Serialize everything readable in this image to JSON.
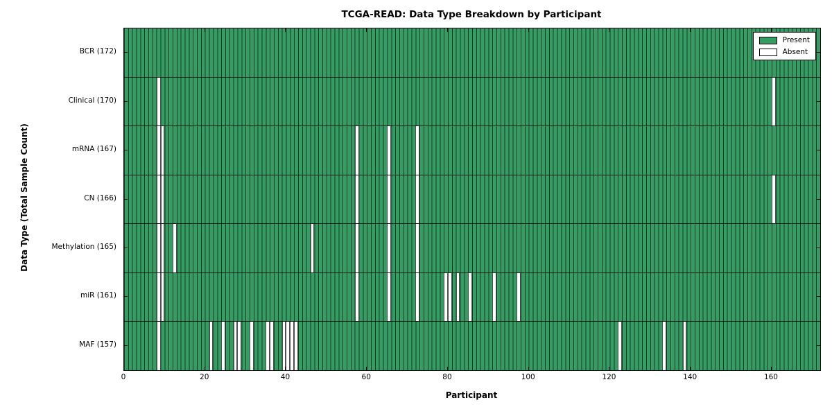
{
  "chart_data": {
    "type": "heatmap",
    "title": "TCGA-READ: Data Type Breakdown by Participant",
    "xlabel": "Participant",
    "ylabel": "Data Type (Total Sample Count)",
    "n_participants": 172,
    "x_ticks": [
      0,
      20,
      40,
      60,
      80,
      100,
      120,
      140,
      160
    ],
    "legend": [
      {
        "label": "Present",
        "color": "#379b64"
      },
      {
        "label": "Absent",
        "color": "#ffffff"
      }
    ],
    "colors": {
      "present": "#379b64",
      "absent": "#ffffff",
      "cell_edge": "#0f3a1e"
    },
    "rows": [
      {
        "label": "BCR (172)",
        "data_type": "BCR",
        "total": 172,
        "absent_participants": []
      },
      {
        "label": "Clinical (170)",
        "data_type": "Clinical",
        "total": 170,
        "absent_participants": [
          8,
          160
        ]
      },
      {
        "label": "mRNA (167)",
        "data_type": "mRNA",
        "total": 167,
        "absent_participants": [
          8,
          9,
          57,
          65,
          72
        ]
      },
      {
        "label": "CN (166)",
        "data_type": "CN",
        "total": 166,
        "absent_participants": [
          8,
          9,
          57,
          65,
          72,
          160
        ]
      },
      {
        "label": "Methylation (165)",
        "data_type": "Methylation",
        "total": 165,
        "absent_participants": [
          8,
          9,
          12,
          46,
          57,
          65,
          72
        ]
      },
      {
        "label": "miR (161)",
        "data_type": "miR",
        "total": 161,
        "absent_participants": [
          8,
          9,
          57,
          65,
          72,
          79,
          80,
          82,
          85,
          91,
          97
        ]
      },
      {
        "label": "MAF (157)",
        "data_type": "MAF",
        "total": 157,
        "absent_participants": [
          8,
          21,
          24,
          27,
          28,
          31,
          35,
          36,
          39,
          40,
          41,
          42,
          122,
          133,
          138
        ]
      }
    ]
  }
}
